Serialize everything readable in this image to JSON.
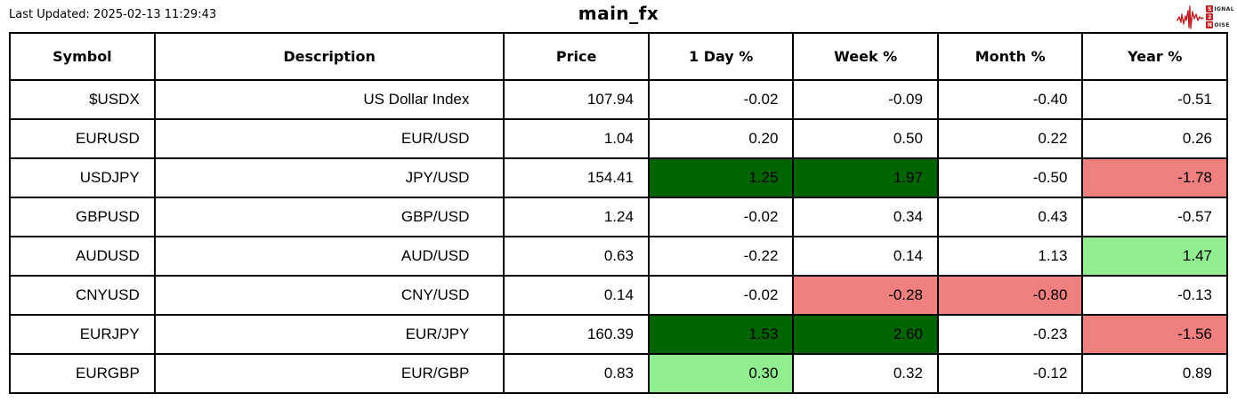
{
  "meta": {
    "last_updated": "Last Updated: 2025-02-13 11:29:43",
    "title": "main_fx"
  },
  "logo": {
    "line1_initial": "S",
    "line1_rest": "IGNAL",
    "line2_initial": "2",
    "line3_initial": "N",
    "line3_rest": "OISE"
  },
  "colors": {
    "logo_red": "#be2026",
    "strong_gain": "#006400",
    "gain": "#90ee90",
    "loss": "#f08080",
    "grid": "#000000"
  },
  "table": {
    "columns": [
      "Symbol",
      "Description",
      "Price",
      "1 Day %",
      "Week %",
      "Month %",
      "Year %"
    ],
    "cell_names": [
      "symbol-cell",
      "description-cell",
      "price-cell",
      "day-change-cell",
      "week-change-cell",
      "month-change-cell",
      "year-change-cell"
    ],
    "rows": [
      {
        "cells": [
          {
            "text": "$USDX",
            "bg": ""
          },
          {
            "text": "US Dollar Index",
            "bg": ""
          },
          {
            "text": "107.94",
            "bg": ""
          },
          {
            "text": "-0.02",
            "bg": ""
          },
          {
            "text": "-0.09",
            "bg": ""
          },
          {
            "text": "-0.40",
            "bg": ""
          },
          {
            "text": "-0.51",
            "bg": ""
          }
        ]
      },
      {
        "cells": [
          {
            "text": "EURUSD",
            "bg": ""
          },
          {
            "text": "EUR/USD",
            "bg": ""
          },
          {
            "text": "1.04",
            "bg": ""
          },
          {
            "text": "0.20",
            "bg": ""
          },
          {
            "text": "0.50",
            "bg": ""
          },
          {
            "text": "0.22",
            "bg": ""
          },
          {
            "text": "0.26",
            "bg": ""
          }
        ]
      },
      {
        "cells": [
          {
            "text": "USDJPY",
            "bg": ""
          },
          {
            "text": "JPY/USD",
            "bg": ""
          },
          {
            "text": "154.41",
            "bg": ""
          },
          {
            "text": "1.25",
            "bg": "dg"
          },
          {
            "text": "1.97",
            "bg": "dg"
          },
          {
            "text": "-0.50",
            "bg": ""
          },
          {
            "text": "-1.78",
            "bg": "lr"
          }
        ]
      },
      {
        "cells": [
          {
            "text": "GBPUSD",
            "bg": ""
          },
          {
            "text": "GBP/USD",
            "bg": ""
          },
          {
            "text": "1.24",
            "bg": ""
          },
          {
            "text": "-0.02",
            "bg": ""
          },
          {
            "text": "0.34",
            "bg": ""
          },
          {
            "text": "0.43",
            "bg": ""
          },
          {
            "text": "-0.57",
            "bg": ""
          }
        ]
      },
      {
        "cells": [
          {
            "text": "AUDUSD",
            "bg": ""
          },
          {
            "text": "AUD/USD",
            "bg": ""
          },
          {
            "text": "0.63",
            "bg": ""
          },
          {
            "text": "-0.22",
            "bg": ""
          },
          {
            "text": "0.14",
            "bg": ""
          },
          {
            "text": "1.13",
            "bg": ""
          },
          {
            "text": "1.47",
            "bg": "lg"
          }
        ]
      },
      {
        "cells": [
          {
            "text": "CNYUSD",
            "bg": ""
          },
          {
            "text": "CNY/USD",
            "bg": ""
          },
          {
            "text": "0.14",
            "bg": ""
          },
          {
            "text": "-0.02",
            "bg": ""
          },
          {
            "text": "-0.28",
            "bg": "lr"
          },
          {
            "text": "-0.80",
            "bg": "lr"
          },
          {
            "text": "-0.13",
            "bg": ""
          }
        ]
      },
      {
        "cells": [
          {
            "text": "EURJPY",
            "bg": ""
          },
          {
            "text": "EUR/JPY",
            "bg": ""
          },
          {
            "text": "160.39",
            "bg": ""
          },
          {
            "text": "1.53",
            "bg": "dg"
          },
          {
            "text": "2.60",
            "bg": "dg"
          },
          {
            "text": "-0.23",
            "bg": ""
          },
          {
            "text": "-1.56",
            "bg": "lr"
          }
        ]
      },
      {
        "cells": [
          {
            "text": "EURGBP",
            "bg": ""
          },
          {
            "text": "EUR/GBP",
            "bg": ""
          },
          {
            "text": "0.83",
            "bg": ""
          },
          {
            "text": "0.30",
            "bg": "lg"
          },
          {
            "text": "0.32",
            "bg": ""
          },
          {
            "text": "-0.12",
            "bg": ""
          },
          {
            "text": "0.89",
            "bg": ""
          }
        ]
      }
    ]
  },
  "chart_data": {
    "type": "table",
    "title": "main_fx",
    "annotation": "Last Updated: 2025-02-13 11:29:43",
    "columns": [
      "Symbol",
      "Description",
      "Price",
      "1 Day %",
      "Week %",
      "Month %",
      "Year %"
    ],
    "rows": [
      [
        "$USDX",
        "US Dollar Index",
        107.94,
        -0.02,
        -0.09,
        -0.4,
        -0.51
      ],
      [
        "EURUSD",
        "EUR/USD",
        1.04,
        0.2,
        0.5,
        0.22,
        0.26
      ],
      [
        "USDJPY",
        "JPY/USD",
        154.41,
        1.25,
        1.97,
        -0.5,
        -1.78
      ],
      [
        "GBPUSD",
        "GBP/USD",
        1.24,
        -0.02,
        0.34,
        0.43,
        -0.57
      ],
      [
        "AUDUSD",
        "AUD/USD",
        0.63,
        -0.22,
        0.14,
        1.13,
        1.47
      ],
      [
        "CNYUSD",
        "CNY/USD",
        0.14,
        -0.02,
        -0.28,
        -0.8,
        -0.13
      ],
      [
        "EURJPY",
        "EUR/JPY",
        160.39,
        1.53,
        2.6,
        -0.23,
        -1.56
      ],
      [
        "EURGBP",
        "EUR/GBP",
        0.83,
        0.3,
        0.32,
        -0.12,
        0.89
      ]
    ],
    "cell_highlights": {
      "legend": {
        "dg": "strong gain #006400",
        "lg": "gain #90ee90",
        "lr": "loss #f08080"
      },
      "USDJPY": {
        "1 Day %": "dg",
        "Week %": "dg",
        "Year %": "lr"
      },
      "AUDUSD": {
        "Year %": "lg"
      },
      "CNYUSD": {
        "Week %": "lr",
        "Month %": "lr"
      },
      "EURJPY": {
        "1 Day %": "dg",
        "Week %": "dg",
        "Year %": "lr"
      },
      "EURGBP": {
        "1 Day %": "lg"
      }
    },
    "layout": {
      "grid": true,
      "header_bold": true,
      "value_align": "right"
    }
  }
}
